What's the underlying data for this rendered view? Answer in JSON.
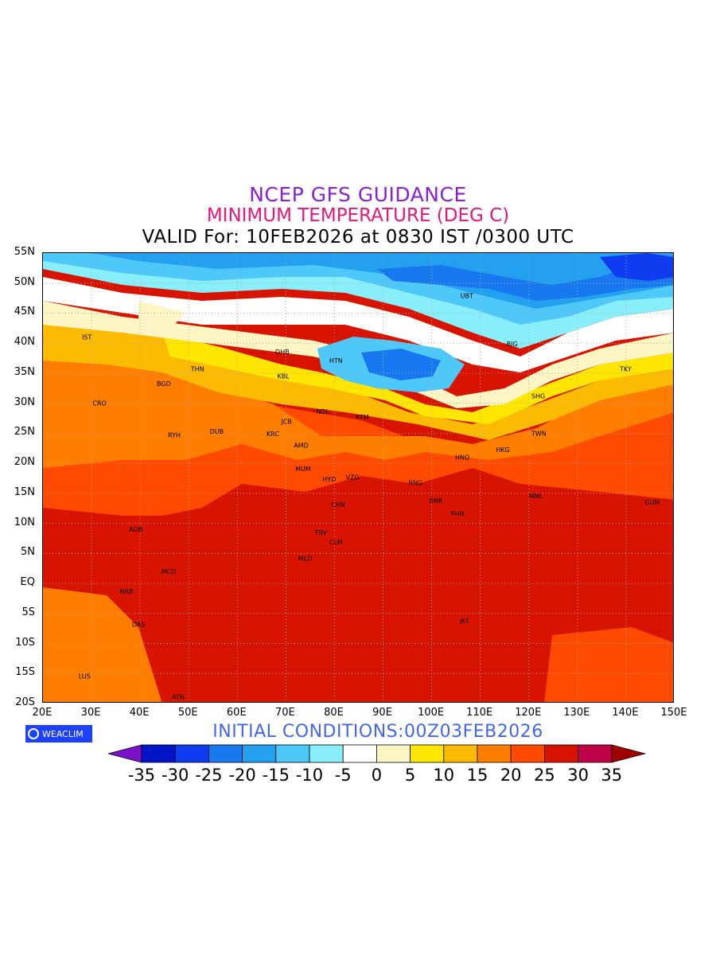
{
  "title": {
    "line1": "NCEP GFS GUIDANCE",
    "line2": "MINIMUM TEMPERATURE (DEG C)",
    "line3": "VALID For: 10FEB2026 at 0830 IST /0300 UTC"
  },
  "axes": {
    "lat_labels": [
      "55N",
      "50N",
      "45N",
      "40N",
      "35N",
      "30N",
      "25N",
      "20N",
      "15N",
      "10N",
      "5N",
      "EQ",
      "5S",
      "10S",
      "15S",
      "20S"
    ],
    "lon_labels": [
      "20E",
      "30E",
      "40E",
      "50E",
      "60E",
      "70E",
      "80E",
      "90E",
      "100E",
      "110E",
      "120E",
      "130E",
      "140E",
      "150E"
    ],
    "lat_range": [
      -20,
      55
    ],
    "lon_range": [
      20,
      150
    ],
    "grid": "dotted"
  },
  "initial_conditions": "INITIAL CONDITIONS:00Z03FEB2026",
  "logo_text": "WEACLIM",
  "colorbar": {
    "labels": [
      "-35",
      "-30",
      "-25",
      "-20",
      "-15",
      "-10",
      "-5",
      "0",
      "5",
      "10",
      "15",
      "20",
      "25",
      "30",
      "35"
    ],
    "colors": [
      "#7a10c8",
      "#0014c8",
      "#0f3cf0",
      "#1778f0",
      "#24a0f0",
      "#4ec8f8",
      "#88eefa",
      "#ffffff",
      "#fdf5c4",
      "#ffe600",
      "#fcbb00",
      "#ff7e00",
      "#ff4a00",
      "#d81400",
      "#c00048",
      "#a00000"
    ]
  },
  "stations": [
    {
      "label": "UBT",
      "lon": 106.9,
      "lat": 47.9
    },
    {
      "label": "BJG",
      "lon": 116.4,
      "lat": 39.9
    },
    {
      "label": "TKY",
      "lon": 139.7,
      "lat": 35.7
    },
    {
      "label": "SHG",
      "lon": 121.5,
      "lat": 31.2
    },
    {
      "label": "TWN",
      "lon": 121.5,
      "lat": 25.0
    },
    {
      "label": "HKG",
      "lon": 114.2,
      "lat": 22.3
    },
    {
      "label": "HNO",
      "lon": 105.8,
      "lat": 21.0
    },
    {
      "label": "MNL",
      "lon": 121.0,
      "lat": 14.6
    },
    {
      "label": "GUM",
      "lon": 144.8,
      "lat": 13.5
    },
    {
      "label": "HTN",
      "lon": 79.9,
      "lat": 37.1
    },
    {
      "label": "DHB",
      "lon": 68.8,
      "lat": 38.6
    },
    {
      "label": "KBL",
      "lon": 69.2,
      "lat": 34.5
    },
    {
      "label": "THN",
      "lon": 51.4,
      "lat": 35.7
    },
    {
      "label": "IST",
      "lon": 29.0,
      "lat": 41.0
    },
    {
      "label": "BGD",
      "lon": 44.4,
      "lat": 33.3
    },
    {
      "label": "CRO",
      "lon": 31.2,
      "lat": 30.0
    },
    {
      "label": "RYH",
      "lon": 46.7,
      "lat": 24.7
    },
    {
      "label": "DUB",
      "lon": 55.3,
      "lat": 25.3
    },
    {
      "label": "JCB",
      "lon": 70.0,
      "lat": 27.0
    },
    {
      "label": "KRC",
      "lon": 67.0,
      "lat": 24.9
    },
    {
      "label": "NDL",
      "lon": 77.2,
      "lat": 28.6
    },
    {
      "label": "RTM",
      "lon": 85.3,
      "lat": 27.7
    },
    {
      "label": "AMD",
      "lon": 72.6,
      "lat": 23.0
    },
    {
      "label": "MUM",
      "lon": 72.9,
      "lat": 19.1
    },
    {
      "label": "HYD",
      "lon": 78.5,
      "lat": 17.4
    },
    {
      "label": "VZG",
      "lon": 83.3,
      "lat": 17.7
    },
    {
      "label": "RNG",
      "lon": 96.2,
      "lat": 16.8
    },
    {
      "label": "BNK",
      "lon": 100.5,
      "lat": 13.8
    },
    {
      "label": "PHN",
      "lon": 104.9,
      "lat": 11.6
    },
    {
      "label": "CHN",
      "lon": 80.3,
      "lat": 13.1
    },
    {
      "label": "TRV",
      "lon": 76.9,
      "lat": 8.5
    },
    {
      "label": "CLM",
      "lon": 79.9,
      "lat": 6.9
    },
    {
      "label": "MLD",
      "lon": 73.5,
      "lat": 4.2
    },
    {
      "label": "ADB",
      "lon": 38.7,
      "lat": 9.0
    },
    {
      "label": "MCD",
      "lon": 45.3,
      "lat": 2.0
    },
    {
      "label": "NRB",
      "lon": 36.8,
      "lat": -1.3
    },
    {
      "label": "DAS",
      "lon": 39.3,
      "lat": -6.8
    },
    {
      "label": "JKT",
      "lon": 106.8,
      "lat": -6.2
    },
    {
      "label": "LUS",
      "lon": 28.3,
      "lat": -15.4
    },
    {
      "label": "ATN",
      "lon": 47.5,
      "lat": -18.9
    }
  ]
}
